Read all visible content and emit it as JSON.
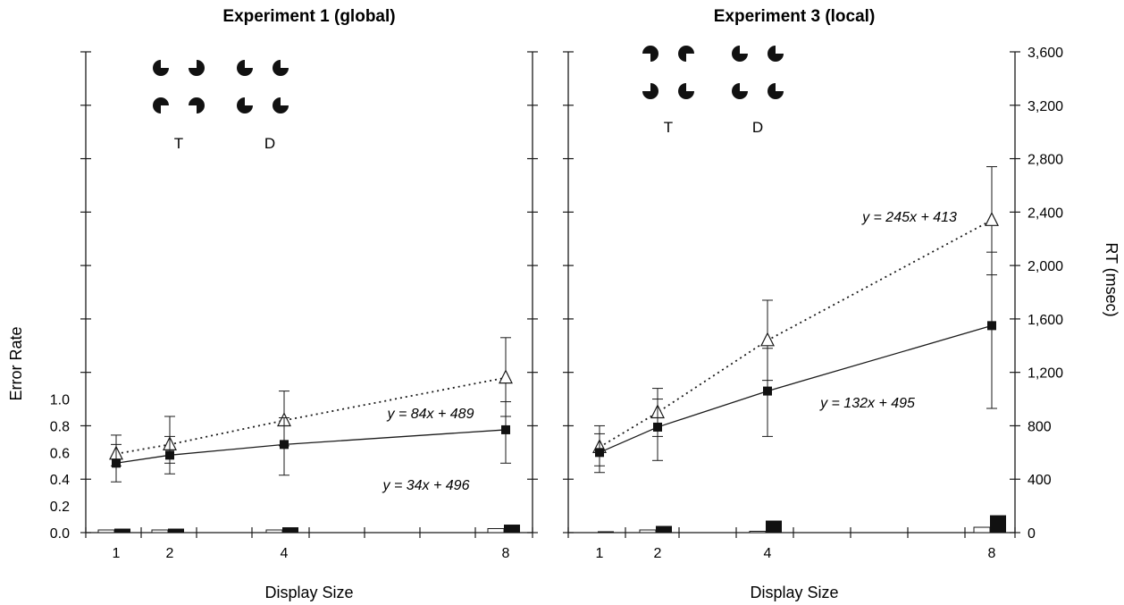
{
  "chart_data": [
    {
      "type": "line",
      "title": "Experiment 1 (global)",
      "xlabel": "Display Size",
      "ylabel": "Error Rate",
      "x_ticks": [
        1,
        2,
        4,
        8
      ],
      "y_left_ticks": [
        "0.0",
        "0.2",
        "0.4",
        "0.6",
        "0.8",
        "1.0"
      ],
      "y_left_range": [
        0,
        1.0
      ],
      "y_rt_range": [
        0,
        3600
      ],
      "stimulus_labels": [
        "T",
        "D"
      ],
      "series": [
        {
          "marker": "open-triangle",
          "style": "dotted",
          "x": [
            1,
            2,
            4,
            8
          ],
          "y": [
            590,
            660,
            840,
            1160
          ],
          "err_low": [
            500,
            520,
            650,
            870
          ],
          "err_high": [
            730,
            870,
            1060,
            1460
          ]
        },
        {
          "marker": "filled-square",
          "style": "solid",
          "x": [
            1,
            2,
            4,
            8
          ],
          "y": [
            520,
            580,
            660,
            770
          ],
          "err_low": [
            380,
            440,
            430,
            520
          ],
          "err_high": [
            660,
            720,
            860,
            980
          ]
        }
      ],
      "equations": [
        "y = 84x + 489",
        "y = 34x + 496"
      ],
      "error_bars": {
        "x": [
          1,
          2,
          4,
          8
        ],
        "open": [
          0.02,
          0.02,
          0.02,
          0.03
        ],
        "filled": [
          0.03,
          0.03,
          0.04,
          0.06
        ]
      }
    },
    {
      "type": "line",
      "title": "Experiment 3 (local)",
      "xlabel": "Display Size",
      "ylabel": "RT (msec)",
      "x_ticks": [
        1,
        2,
        4,
        8
      ],
      "y_right_ticks": [
        "0",
        "400",
        "800",
        "1,200",
        "1,600",
        "2,000",
        "2,400",
        "2,800",
        "3,200",
        "3,600"
      ],
      "y_rt_range": [
        0,
        3600
      ],
      "y_left_range": [
        0,
        1.0
      ],
      "stimulus_labels": [
        "T",
        "D"
      ],
      "series": [
        {
          "marker": "open-triangle",
          "style": "dotted",
          "x": [
            1,
            2,
            4,
            8
          ],
          "y": [
            640,
            900,
            1440,
            2340
          ],
          "err_low": [
            500,
            720,
            1140,
            1930
          ],
          "err_high": [
            800,
            1080,
            1740,
            2740
          ]
        },
        {
          "marker": "filled-square",
          "style": "solid",
          "x": [
            1,
            2,
            4,
            8
          ],
          "y": [
            600,
            790,
            1060,
            1550
          ],
          "err_low": [
            450,
            540,
            720,
            930
          ],
          "err_high": [
            740,
            1000,
            1380,
            2100
          ]
        }
      ],
      "equations": [
        "y = 245x + 413",
        "y = 132x + 495"
      ],
      "error_bars": {
        "x": [
          1,
          2,
          4,
          8
        ],
        "open": [
          0.0,
          0.02,
          0.01,
          0.04
        ],
        "filled": [
          0.01,
          0.05,
          0.09,
          0.13
        ]
      }
    }
  ]
}
